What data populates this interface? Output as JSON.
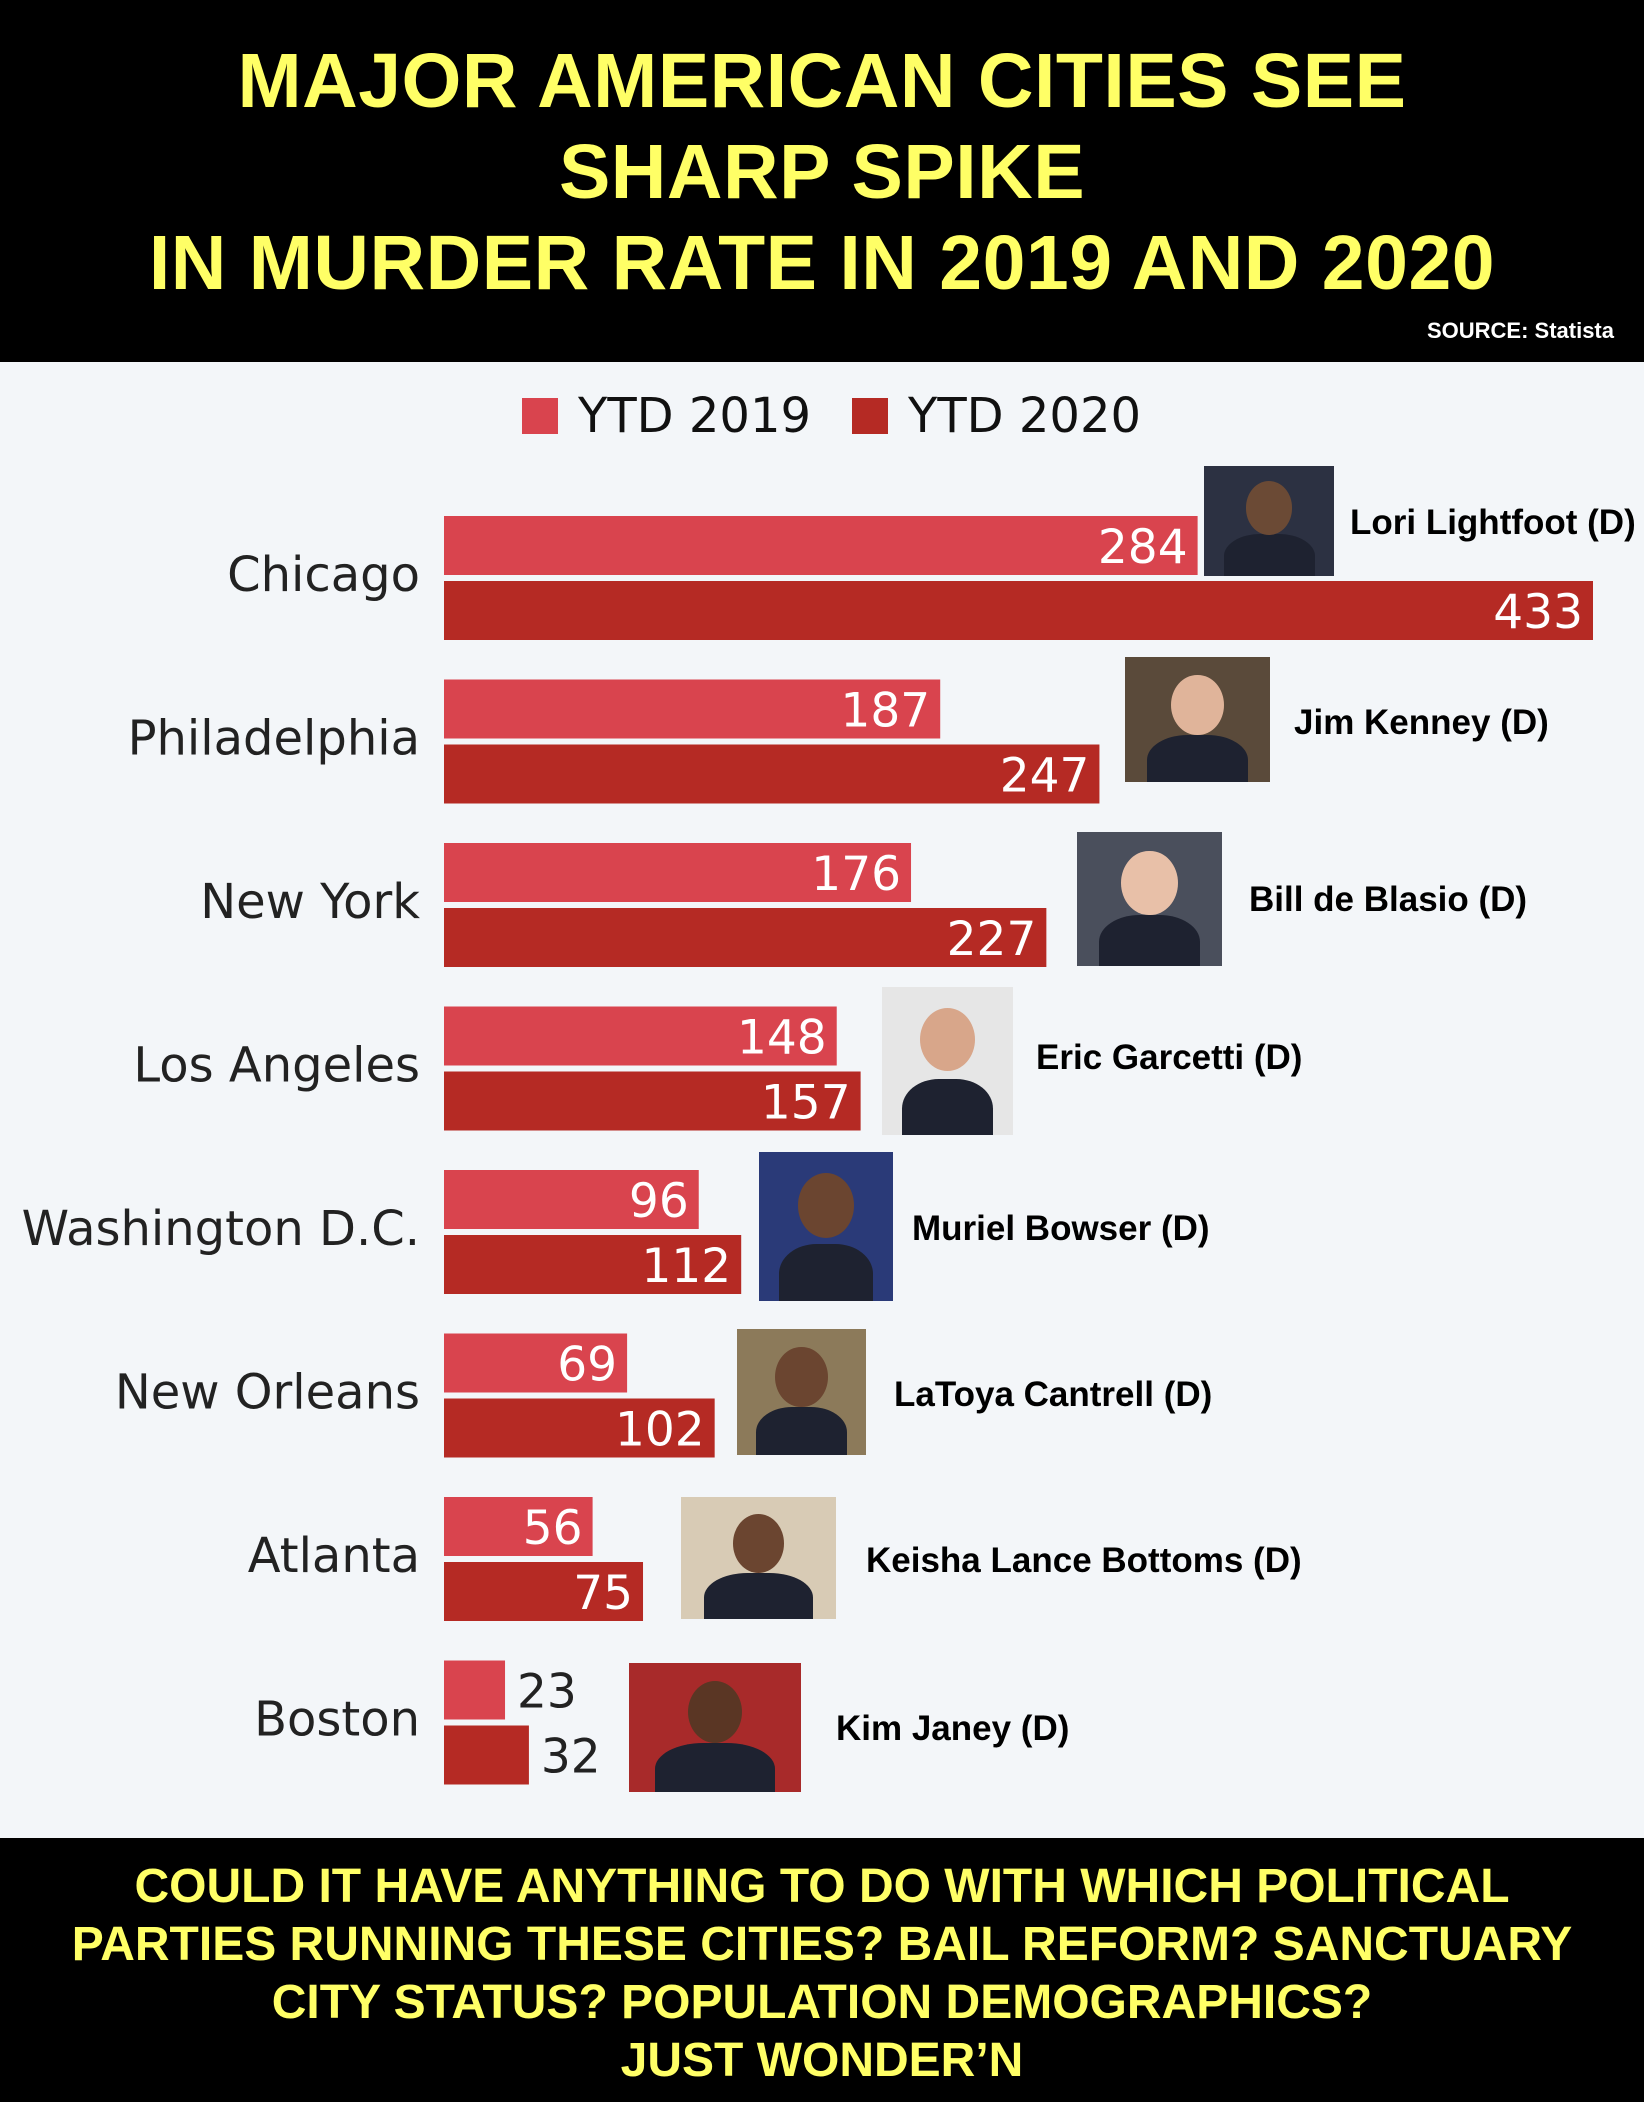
{
  "header": {
    "title_lines": [
      "MAJOR AMERICAN CITIES SEE",
      "SHARP SPIKE",
      "IN MURDER RATE IN 2019 AND 2020"
    ],
    "source": "SOURCE: Statista"
  },
  "colors": {
    "ytd2019": "#d9444e",
    "ytd2020": "#b52a24",
    "header_bg": "#000000",
    "title_text": "#ffff66",
    "chart_bg": "#f3f6f9"
  },
  "chart_data": {
    "type": "bar",
    "orientation": "horizontal",
    "categories": [
      "Chicago",
      "Philadelphia",
      "New York",
      "Los Angeles",
      "Washington D.C.",
      "New Orleans",
      "Atlanta",
      "Boston"
    ],
    "series": [
      {
        "name": "YTD 2019",
        "values": [
          284,
          187,
          176,
          148,
          96,
          69,
          56,
          23
        ]
      },
      {
        "name": "YTD 2020",
        "values": [
          433,
          247,
          227,
          157,
          112,
          102,
          75,
          32
        ]
      }
    ],
    "xlim": [
      0,
      433
    ],
    "legend": "top-center",
    "grid": false
  },
  "mayors": [
    "Lori Lightfoot (D)",
    "Jim Kenney (D)",
    "Bill de Blasio (D)",
    "Eric Garcetti (D)",
    "Muriel Bowser (D)",
    "LaToya Cantrell (D)",
    "Keisha Lance Bottoms (D)",
    "Kim Janey (D)"
  ],
  "footer": {
    "lines": [
      "COULD IT HAVE ANYTHING TO DO WITH WHICH POLITICAL",
      "PARTIES RUNNING THESE CITIES? BAIL REFORM? SANCTUARY",
      "CITY STATUS? POPULATION DEMOGRAPHICS?",
      "JUST WONDER’N"
    ]
  }
}
